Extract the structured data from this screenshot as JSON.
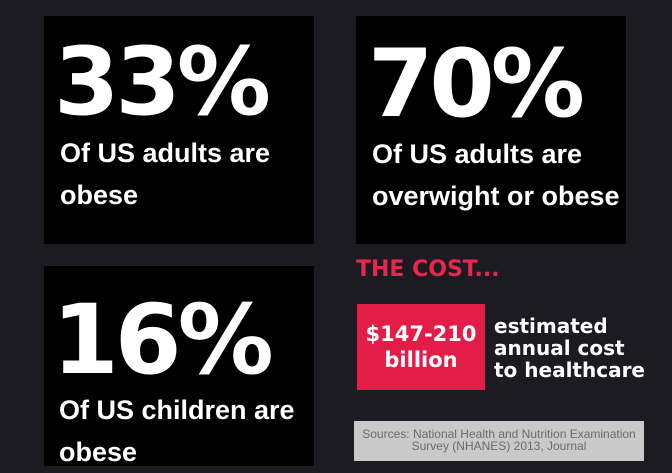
{
  "stats": [
    {
      "value": "33%",
      "description": "Of US adults are obese"
    },
    {
      "value": "70%",
      "description": "Of US adults are overwight or obese"
    },
    {
      "value": "16%",
      "description": "Of US children are obese"
    }
  ],
  "cost": {
    "title": "THE COST...",
    "amount": "$147-210\nbillion",
    "description": "estimated\nannual cost\nto healthcare"
  },
  "sources": "Sources: National Health and Nutrition Examination Survey (NHANES) 2013, Journal",
  "colors": {
    "background": "#1c1b22",
    "card": "#000000",
    "accent": "#e31c48",
    "sources_bg": "#c9c9c9"
  }
}
